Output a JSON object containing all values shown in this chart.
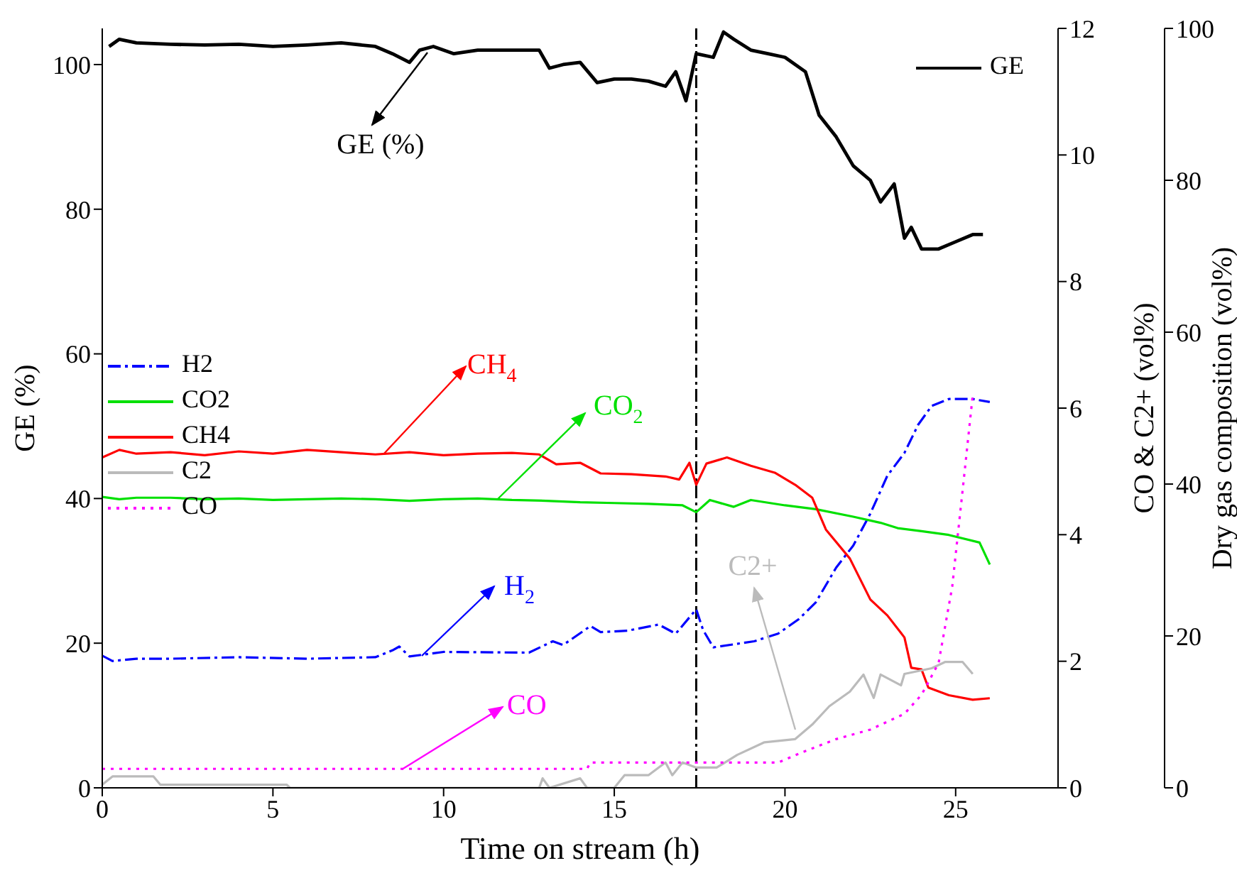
{
  "chart_data": {
    "type": "line",
    "xlabel": "Time on stream (h)",
    "ylabel": "GE (%)",
    "y2label": "CO & C2+ (vol%)",
    "y3label": "Dry gas composition (vol%)",
    "xlim": [
      0,
      28
    ],
    "xticks": [
      0,
      5,
      10,
      15,
      20,
      25
    ],
    "ylim": [
      0,
      105
    ],
    "yticks": [
      0,
      20,
      40,
      60,
      80,
      100
    ],
    "y2lim": [
      0,
      12
    ],
    "y2ticks": [
      0,
      2,
      4,
      6,
      8,
      10,
      12
    ],
    "y3lim": [
      0,
      100
    ],
    "y3ticks": [
      0,
      20,
      40,
      60,
      80,
      100
    ],
    "grid": false,
    "legend": "left",
    "series": [
      {
        "name": "GE",
        "color": "#000000",
        "line_style": "solid",
        "x": [
          0.2,
          0.5,
          1,
          2,
          3,
          4,
          5,
          6,
          7,
          8,
          8.5,
          9,
          9.3,
          9.7,
          10.3,
          11,
          12,
          12.8,
          13.1,
          13.5,
          14,
          14.5,
          15,
          15.5,
          16,
          16.5,
          16.8,
          17.1,
          17.4,
          17.9,
          18.2,
          18.5,
          19,
          19.5,
          20,
          20.6,
          21,
          21.5,
          22,
          22.5,
          22.8,
          23.2,
          23.5,
          23.7,
          24,
          24.5,
          25,
          25.5,
          25.8
        ],
        "values": [
          102.5,
          103.5,
          103,
          102.8,
          102.7,
          102.8,
          102.5,
          102.7,
          103,
          102.5,
          101.5,
          100.3,
          102,
          102.5,
          101.5,
          102,
          102,
          102,
          99.5,
          100,
          100.3,
          97.5,
          98,
          98,
          97.7,
          97,
          99,
          95,
          101.5,
          101,
          104.5,
          103.5,
          102,
          101.5,
          101,
          99,
          93,
          90,
          86,
          84,
          81,
          83.5,
          76,
          77.5,
          74.5,
          74.5,
          75.5,
          76.5,
          76.5
        ]
      },
      {
        "name": "H2",
        "color": "#0000ff",
        "axis": "y3",
        "line_style": "dashdot",
        "x": [
          0,
          0.3,
          1,
          2,
          4,
          6,
          8,
          8.5,
          8.7,
          9,
          10,
          12.5,
          13.2,
          13.5,
          14.3,
          14.6,
          15.4,
          16.3,
          16.8,
          17.4,
          17.6,
          17.9,
          19.1,
          19.8,
          20.4,
          20.9,
          21.5,
          22,
          22.5,
          23,
          23.5,
          23.9,
          24.3,
          24.8,
          25.5,
          26
        ],
        "values": [
          17.4,
          16.7,
          17,
          17,
          17.2,
          17,
          17.2,
          18.1,
          18.6,
          17.3,
          17.9,
          17.8,
          19.3,
          18.8,
          21.3,
          20.5,
          20.7,
          21.5,
          20.3,
          23.5,
          20.8,
          18.5,
          19.3,
          20.3,
          22.2,
          24.4,
          29,
          31.9,
          36.1,
          41.1,
          44.1,
          47.8,
          50.3,
          51.2,
          51.2,
          50.8
        ]
      },
      {
        "name": "CO2",
        "color": "#00e000",
        "axis": "y3",
        "line_style": "solid",
        "x": [
          0,
          0.5,
          1,
          2,
          3,
          4,
          5,
          6,
          7,
          8,
          9,
          10,
          11,
          12,
          13,
          14,
          15,
          16,
          17,
          17.4,
          17.8,
          18.5,
          19,
          20,
          20.9,
          22,
          22.8,
          23.3,
          24,
          24.8,
          25.7,
          26
        ],
        "values": [
          38.3,
          38,
          38.2,
          38.2,
          38,
          38.1,
          37.9,
          38,
          38.1,
          38,
          37.8,
          38,
          38.1,
          37.9,
          37.8,
          37.6,
          37.5,
          37.4,
          37.2,
          36.3,
          37.9,
          37,
          37.9,
          37.2,
          36.7,
          35.7,
          34.9,
          34.2,
          33.8,
          33.3,
          32.3,
          29.4
        ]
      },
      {
        "name": "CH4",
        "color": "#ff0000",
        "axis": "y3",
        "line_style": "solid",
        "x": [
          0,
          0.5,
          1,
          2,
          3,
          4,
          5,
          6,
          7,
          8,
          9,
          10,
          11,
          12,
          12.8,
          13.3,
          14,
          14.6,
          15.5,
          16.5,
          16.9,
          17.2,
          17.4,
          17.7,
          18.3,
          19,
          19.7,
          20.3,
          20.8,
          21.2,
          21.9,
          22.5,
          23,
          23.5,
          23.7,
          24,
          24.2,
          24.8,
          25.5,
          26
        ],
        "values": [
          43.5,
          44.5,
          44,
          44.2,
          43.8,
          44.3,
          44,
          44.5,
          44.2,
          43.9,
          44.2,
          43.8,
          44,
          44.1,
          43.9,
          42.6,
          42.8,
          41.4,
          41.3,
          41,
          40.6,
          42.8,
          39.9,
          42.7,
          43.5,
          42.4,
          41.5,
          39.9,
          38.2,
          34,
          30.2,
          24.8,
          22.7,
          19.8,
          15.8,
          15.6,
          13.2,
          12.2,
          11.6,
          11.8
        ]
      },
      {
        "name": "C2",
        "color": "#bbbbbb",
        "axis": "y2",
        "line_style": "solid",
        "x": [
          0,
          0.3,
          1.5,
          1.7,
          5.4,
          5.5,
          12.8,
          12.9,
          13.1,
          14,
          14.2,
          15,
          15.3,
          16,
          16.5,
          16.7,
          17,
          17.4,
          18,
          18.6,
          19.4,
          20.3,
          20.8,
          21.3,
          21.9,
          22.3,
          22.6,
          22.8,
          23.4,
          23.5,
          24.3,
          24.7,
          25.2,
          25.5
        ],
        "values": [
          0.05,
          0.18,
          0.18,
          0.05,
          0.05,
          0,
          0,
          0.15,
          0,
          0.15,
          0,
          0,
          0.2,
          0.2,
          0.4,
          0.2,
          0.4,
          0.32,
          0.32,
          0.52,
          0.72,
          0.77,
          1,
          1.29,
          1.52,
          1.79,
          1.42,
          1.79,
          1.62,
          1.8,
          1.89,
          1.99,
          1.99,
          1.8
        ]
      },
      {
        "name": "CO",
        "color": "#ff00ff",
        "axis": "y2",
        "line_style": "dotted",
        "x": [
          0,
          14.2,
          14.3,
          19.8,
          20.5,
          21.5,
          22.5,
          23.5,
          24,
          24.5,
          24.9,
          25.2,
          25.5
        ],
        "values": [
          0.3,
          0.3,
          0.4,
          0.4,
          0.56,
          0.77,
          0.92,
          1.17,
          1.47,
          1.97,
          3.18,
          4.68,
          6.2
        ]
      }
    ],
    "ref_lines": [
      {
        "axis": "x",
        "value": 17.4,
        "color": "#000000",
        "line_style": "dashdot"
      }
    ],
    "annotations": [
      "GE (%)",
      "CH$_{4}$",
      "CO$_{2}$",
      "H$_{2}$",
      "CO",
      "C2+"
    ]
  }
}
